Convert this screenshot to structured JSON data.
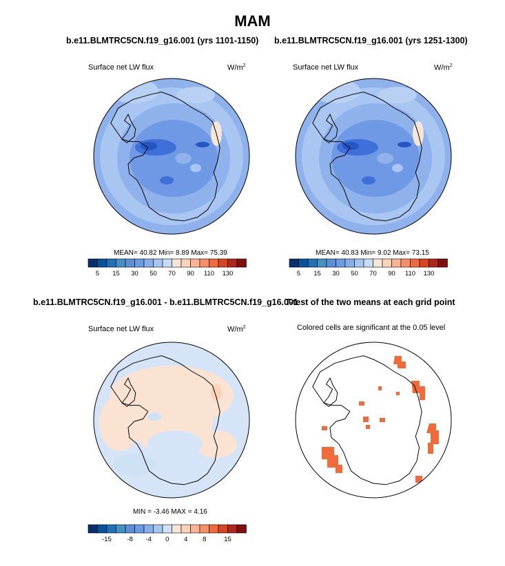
{
  "title": "MAM",
  "panels": [
    {
      "case_title": "b.e11.BLMTRC5CN.f19_g16.001 (yrs 1101-1150)",
      "variable": "Surface net LW flux",
      "units": "W/m",
      "units_sup": "2",
      "stats": "MEAN=  40.82  Min=   8.89  Max=  75.39",
      "colorbar": {
        "colors": [
          "#08306b",
          "#08519c",
          "#2171b5",
          "#4292c6",
          "#5a8fd6",
          "#6b9be0",
          "#86aeea",
          "#a6c6f0",
          "#c6dcf5",
          "#f5e6d8",
          "#fcd2b8",
          "#fcb393",
          "#f79068",
          "#ef6a3e",
          "#d94420",
          "#b0261a",
          "#800e0e"
        ],
        "tick_labels": [
          "5",
          "15",
          "30",
          "50",
          "70",
          "90",
          "110",
          "130"
        ]
      }
    },
    {
      "case_title": "b.e11.BLMTRC5CN.f19_g16.001 (yrs 1251-1300)",
      "variable": "Surface net LW flux",
      "units": "W/m",
      "units_sup": "2",
      "stats": "MEAN=  40.83  Min=   9.02  Max=  73.15",
      "colorbar": {
        "colors": [
          "#08306b",
          "#08519c",
          "#2171b5",
          "#4292c6",
          "#5a8fd6",
          "#6b9be0",
          "#86aeea",
          "#a6c6f0",
          "#c6dcf5",
          "#f5e6d8",
          "#fcd2b8",
          "#fcb393",
          "#f79068",
          "#ef6a3e",
          "#d94420",
          "#b0261a",
          "#800e0e"
        ],
        "tick_labels": [
          "5",
          "15",
          "30",
          "50",
          "70",
          "90",
          "110",
          "130"
        ]
      }
    },
    {
      "case_title": "b.e11.BLMTRC5CN.f19_g16.001 - b.e11.BLMTRC5CN.f19_g16.001",
      "variable": "Surface net LW flux",
      "units": "W/m",
      "units_sup": "2",
      "stats": "MIN =  -3.46  MAX =   4.16",
      "colorbar": {
        "colors": [
          "#08306b",
          "#08519c",
          "#2171b5",
          "#4292c6",
          "#5a8fd6",
          "#6b9be0",
          "#86aeea",
          "#a6c6f0",
          "#cfe1f5",
          "#f8e4d4",
          "#fcd2b8",
          "#fcb393",
          "#f79068",
          "#ef6a3e",
          "#d94420",
          "#b0261a",
          "#800e0e"
        ],
        "tick_labels": [
          "-15",
          "-8",
          "-4",
          "0",
          "4",
          "8",
          "15"
        ]
      }
    },
    {
      "case_title": "T-test of the two means at each grid point",
      "variable": "Colored cells are significant at the 0.05 level"
    }
  ],
  "colors": {
    "field_background": "#8fb1ec",
    "field_light": "#a9c6f2",
    "field_dark": "#6f99e4",
    "field_darkest": "#3f6fd8",
    "diff_background": "#d5e4f7",
    "diff_positive": "#fbe3d3",
    "significant_cells": "#f26a3a",
    "coastline": "#000000"
  }
}
